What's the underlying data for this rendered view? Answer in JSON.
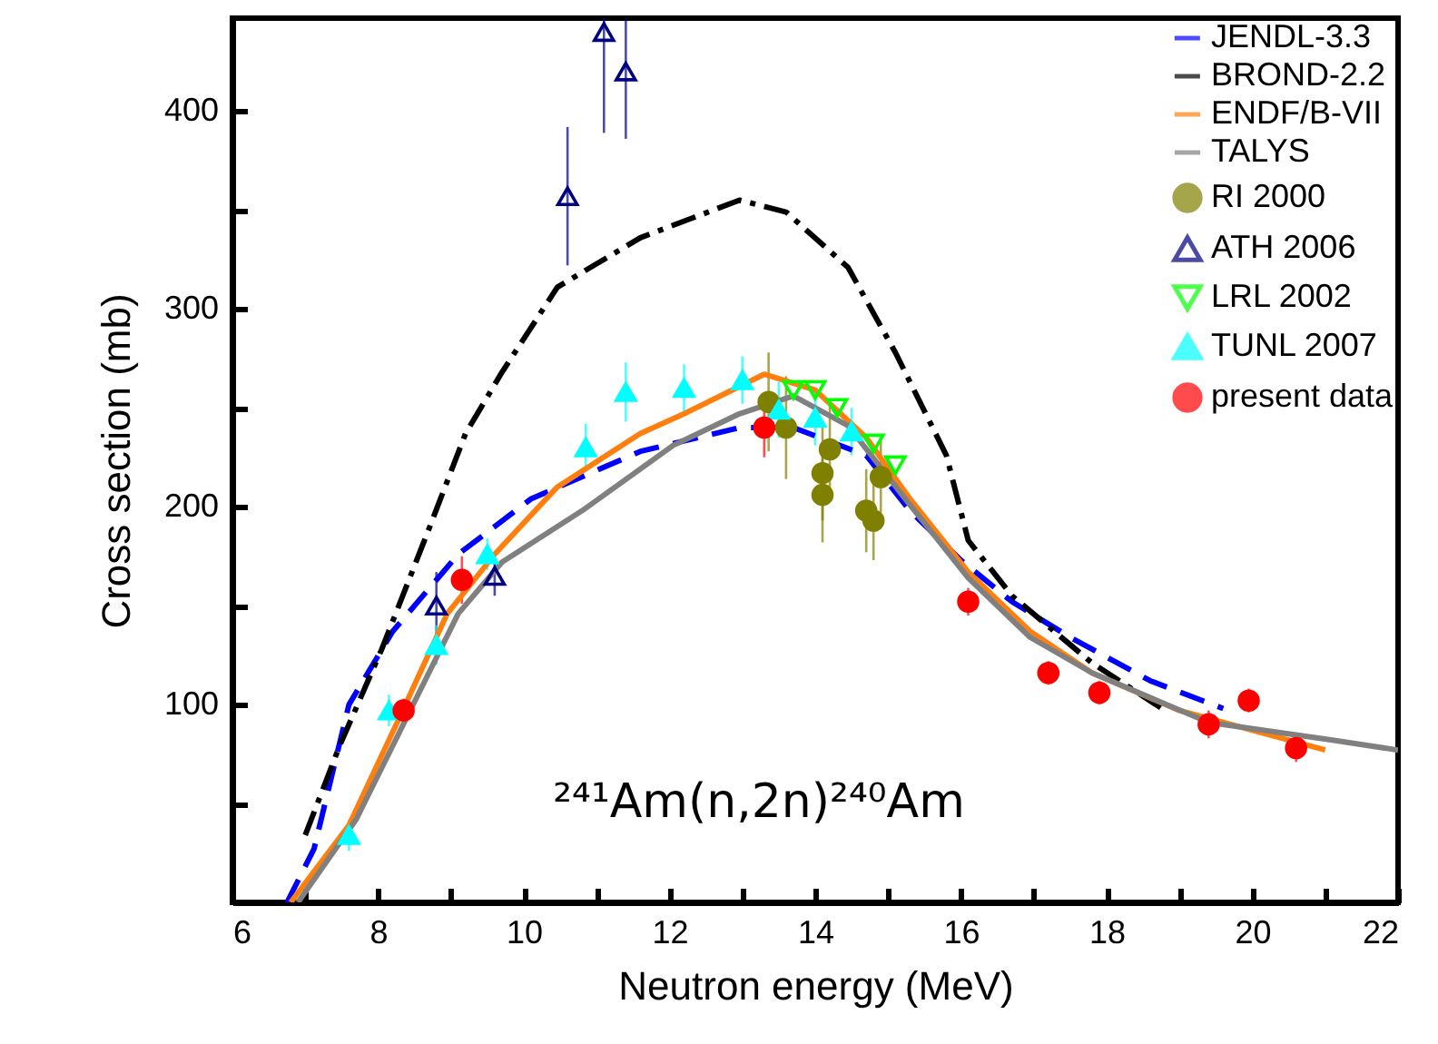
{
  "chart_data": {
    "type": "line",
    "xlabel": "Neutron energy (MeV)",
    "ylabel": "Cross section (mb)",
    "xlim": [
      6,
      22
    ],
    "ylim": [
      0,
      447
    ],
    "xticks": [
      6,
      {
        "value": 7,
        "label": null
      },
      8,
      {
        "value": 9,
        "label": null
      },
      10,
      {
        "value": 11,
        "label": null
      },
      12,
      {
        "value": 13,
        "label": null
      },
      14,
      {
        "value": 15,
        "label": null
      },
      16,
      {
        "value": 17,
        "label": null
      },
      18,
      {
        "value": 19,
        "label": null
      },
      20,
      {
        "value": 21,
        "label": null
      },
      22
    ],
    "yticks": [
      {
        "value": 50,
        "label": null
      },
      100,
      {
        "value": 150,
        "label": null
      },
      200,
      {
        "value": 250,
        "label": null
      },
      300,
      {
        "value": 350,
        "label": null
      },
      400
    ],
    "grid": false,
    "legend": "top right",
    "annotations": [
      "²⁴¹Am(n,2n)²⁴⁰Am"
    ],
    "series": [
      {
        "name": "JENDL-3.3",
        "color": "#0000ff",
        "line_style": "dashed",
        "x": [
          6.75,
          7.12,
          7.6,
          8.2,
          9.1,
          10.1,
          11.6,
          12.96,
          13.7,
          14.7,
          15.3,
          16.0,
          16.7,
          17.5,
          18.6,
          19.6
        ],
        "values": [
          0,
          27,
          100,
          137,
          176,
          204,
          228,
          240,
          240,
          226,
          198,
          173,
          152,
          134,
          112,
          98
        ]
      },
      {
        "name": "BROND-2.2",
        "color": "#000000",
        "line_style": "dashdot",
        "x": [
          7.0,
          7.47,
          8.05,
          8.7,
          9.2,
          9.7,
          10.46,
          11.6,
          12.96,
          13.6,
          14.45,
          15.1,
          15.8,
          16.1,
          16.7,
          17.8,
          18.8
        ],
        "values": [
          34,
          79,
          128,
          189,
          237,
          268,
          311,
          336,
          355,
          349,
          321,
          278,
          226,
          183,
          155,
          121,
          97
        ]
      },
      {
        "name": "ENDF/B-VII",
        "color": "#ff7f0e",
        "line_style": "solid",
        "x": [
          6.8,
          7.6,
          8.3,
          8.95,
          9.6,
          10.46,
          11.6,
          12.2,
          13.3,
          14.0,
          14.7,
          15.3,
          16.1,
          16.95,
          17.8,
          19.0,
          21.0
        ],
        "values": [
          0,
          39,
          94,
          146,
          176,
          210,
          237,
          247,
          267,
          259,
          235,
          204,
          167,
          137,
          116,
          97,
          77
        ]
      },
      {
        "name": "TALYS",
        "color": "#808080",
        "line_style": "solid",
        "x": [
          6.9,
          7.7,
          8.4,
          9.1,
          9.7,
          10.8,
          12.05,
          12.96,
          13.7,
          14.45,
          15.3,
          16.1,
          16.95,
          17.8,
          19.4,
          21.1,
          22.0
        ],
        "values": [
          0,
          42,
          94,
          146,
          172,
          198,
          231,
          247,
          256,
          241,
          201,
          164,
          134,
          116,
          91,
          82,
          77
        ]
      },
      {
        "name": "RI 2000",
        "type": "scatter",
        "color": "#808000",
        "marker": "circle",
        "x": [
          13.36,
          13.6,
          14.1,
          14.1,
          14.2,
          14.7,
          14.8,
          14.9
        ],
        "values": [
          253,
          240,
          217,
          206,
          229,
          198,
          193,
          215
        ],
        "errors": [
          25,
          26,
          24,
          24,
          22,
          21,
          20,
          18
        ]
      },
      {
        "name": "ATH 2006",
        "type": "scatter",
        "color": "#000080",
        "marker": "triangle-open",
        "x": [
          8.8,
          9.6,
          10.6,
          11.1,
          11.4
        ],
        "values": [
          150,
          165,
          357,
          440,
          420
        ],
        "errors": [
          17,
          10,
          35,
          [
            389,
            447
          ],
          [
            386,
            447
          ]
        ]
      },
      {
        "name": "LRL 2002",
        "type": "scatter",
        "color": "#00ff00",
        "marker": "triangle-down-open",
        "x": [
          13.7,
          14.0,
          14.3,
          14.8,
          15.1
        ],
        "values": [
          259,
          259,
          250,
          232,
          221
        ]
      },
      {
        "name": "TUNL 2007",
        "type": "scatter",
        "color": "#00ffff",
        "marker": "triangle",
        "x": [
          7.6,
          8.15,
          8.8,
          9.5,
          10.85,
          11.4,
          12.2,
          13.0,
          13.5,
          14.0,
          14.5
        ],
        "values": [
          34,
          97,
          130,
          176,
          230,
          258,
          260,
          264,
          249,
          245,
          238
        ],
        "errors": [
          8,
          8,
          10,
          8,
          12,
          15,
          12,
          12,
          14,
          14,
          12
        ]
      },
      {
        "name": "present data",
        "type": "scatter",
        "color": "#ff0000",
        "marker": "circle",
        "x": [
          8.35,
          9.15,
          13.3,
          16.1,
          17.2,
          17.9,
          19.4,
          19.95,
          20.6
        ],
        "values": [
          97,
          163,
          240,
          152,
          116,
          106,
          90,
          102,
          78
        ],
        "errors": [
          6,
          12,
          15,
          7,
          6,
          6,
          7,
          6,
          7
        ]
      }
    ]
  }
}
